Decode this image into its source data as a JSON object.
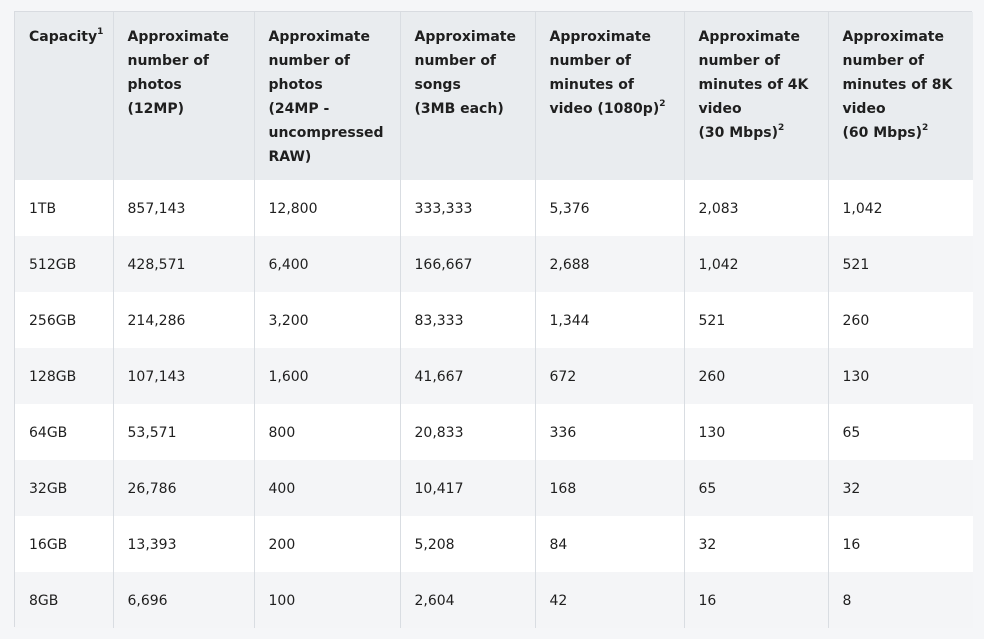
{
  "table": {
    "headers": [
      {
        "text": "Capacity",
        "sup": "1"
      },
      {
        "text": "Approximate number of photos (12MP)",
        "lines": [
          "Approximate",
          "number of",
          "photos (12MP)"
        ],
        "sup": ""
      },
      {
        "text": "Approximate number of photos (24MP - uncompressed RAW)",
        "lines": [
          "Approximate",
          "number of",
          "photos",
          "(24MP -",
          "uncompressed",
          "RAW)"
        ],
        "sup": ""
      },
      {
        "text": "Approximate number of songs (3MB each)",
        "lines": [
          "Approximate",
          "number of",
          "songs",
          "(3MB each)"
        ],
        "sup": ""
      },
      {
        "text": "Approximate number of minutes of video (1080p)",
        "lines": [
          "Approximate",
          "number of",
          "minutes of",
          "video (1080p)"
        ],
        "sup": "2"
      },
      {
        "text": "Approximate number of minutes of 4K video (30 Mbps)",
        "lines": [
          "Approximate",
          "number of",
          "minutes of 4K",
          "video",
          "(30 Mbps)"
        ],
        "sup": "2"
      },
      {
        "text": "Approximate number of minutes of 8K video (60 Mbps)",
        "lines": [
          "Approximate",
          "number of",
          "minutes of 8K",
          "video",
          "(60 Mbps)"
        ],
        "sup": "2"
      }
    ],
    "rows": [
      [
        "1TB",
        "857,143",
        "12,800",
        "333,333",
        "5,376",
        "2,083",
        "1,042"
      ],
      [
        "512GB",
        "428,571",
        "6,400",
        "166,667",
        "2,688",
        "1,042",
        "521"
      ],
      [
        "256GB",
        "214,286",
        "3,200",
        "83,333",
        "1,344",
        "521",
        "260"
      ],
      [
        "128GB",
        "107,143",
        "1,600",
        "41,667",
        "672",
        "260",
        "130"
      ],
      [
        "64GB",
        "53,571",
        "800",
        "20,833",
        "336",
        "130",
        "65"
      ],
      [
        "32GB",
        "26,786",
        "400",
        "10,417",
        "168",
        "65",
        "32"
      ],
      [
        "16GB",
        "13,393",
        "200",
        "5,208",
        "84",
        "32",
        "16"
      ],
      [
        "8GB",
        "6,696",
        "100",
        "2,604",
        "42",
        "16",
        "8"
      ]
    ]
  }
}
